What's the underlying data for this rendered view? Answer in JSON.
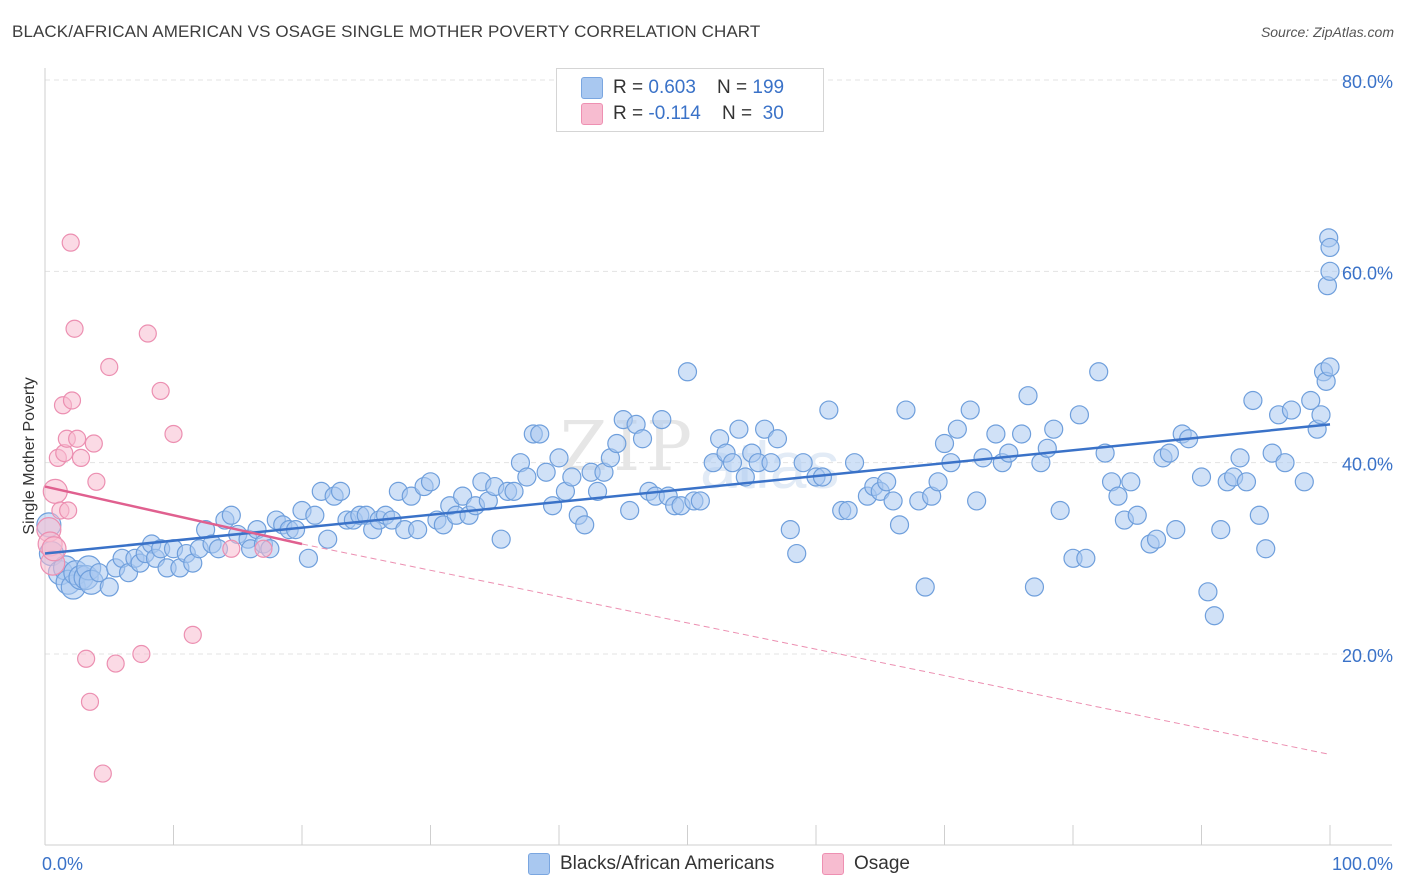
{
  "title": "BLACK/AFRICAN AMERICAN VS OSAGE SINGLE MOTHER POVERTY CORRELATION CHART",
  "source": "Source: ZipAtlas.com",
  "watermark": {
    "part1": "ZIP",
    "part2": "atlas"
  },
  "legend": {
    "rows": [
      {
        "r_label": "R = ",
        "r_value": "0.603",
        "n_label": "N = ",
        "n_value": "199",
        "color": "#a9c8f0"
      },
      {
        "r_label": "R = ",
        "r_value": "-0.114",
        "n_label": "N = ",
        "n_value": " 30",
        "color": "#f7bcd0"
      }
    ]
  },
  "bottom_legend": {
    "blue_label": "Blacks/African Americans",
    "pink_label": "Osage"
  },
  "chart_data": {
    "type": "scatter",
    "title": "BLACK/AFRICAN AMERICAN VS OSAGE SINGLE MOTHER POVERTY CORRELATION CHART",
    "xlabel": "",
    "ylabel": "Single Mother Poverty",
    "xlim": [
      0,
      100
    ],
    "ylim": [
      0,
      85
    ],
    "x_tick_labels": [
      "0.0%",
      "100.0%"
    ],
    "y_ticks": [
      20,
      40,
      60,
      80
    ],
    "y_tick_labels": [
      "20.0%",
      "40.0%",
      "60.0%",
      "80.0%"
    ],
    "grid": true,
    "colors": {
      "blue": "#3a72c8",
      "blue_fill": "#a9c8f0",
      "pink": "#e0608f",
      "pink_fill": "#f7bcd0"
    },
    "series": [
      {
        "name": "Blacks/African Americans",
        "R": 0.603,
        "N": 199,
        "trend": {
          "x": [
            0,
            100
          ],
          "y": [
            30.5,
            44
          ]
        },
        "points": [
          [
            0.3,
            33.5
          ],
          [
            0.5,
            30.5
          ],
          [
            1.2,
            28.5
          ],
          [
            1.6,
            29
          ],
          [
            1.8,
            27.5
          ],
          [
            2.2,
            27
          ],
          [
            2.4,
            28.5
          ],
          [
            2.8,
            28
          ],
          [
            3.2,
            28
          ],
          [
            3.4,
            29
          ],
          [
            3.6,
            27.5
          ],
          [
            4.2,
            28.5
          ],
          [
            5,
            27
          ],
          [
            5.5,
            29
          ],
          [
            6,
            30
          ],
          [
            6.5,
            28.5
          ],
          [
            7,
            30
          ],
          [
            7.4,
            29.5
          ],
          [
            7.8,
            30.5
          ],
          [
            8.3,
            31.5
          ],
          [
            8.6,
            30
          ],
          [
            9,
            31
          ],
          [
            9.5,
            29
          ],
          [
            10,
            31
          ],
          [
            10.5,
            29
          ],
          [
            11,
            30.5
          ],
          [
            11.5,
            29.5
          ],
          [
            12,
            31
          ],
          [
            12.5,
            33
          ],
          [
            13,
            31.5
          ],
          [
            13.5,
            31
          ],
          [
            14,
            34
          ],
          [
            14.5,
            34.5
          ],
          [
            15,
            32.5
          ],
          [
            15.8,
            32
          ],
          [
            16,
            31
          ],
          [
            16.5,
            33
          ],
          [
            17,
            31.5
          ],
          [
            17.5,
            31
          ],
          [
            18,
            34
          ],
          [
            18.5,
            33.5
          ],
          [
            19,
            33
          ],
          [
            19.5,
            33
          ],
          [
            20,
            35
          ],
          [
            20.5,
            30
          ],
          [
            21,
            34.5
          ],
          [
            21.5,
            37
          ],
          [
            22,
            32
          ],
          [
            22.5,
            36.5
          ],
          [
            23,
            37
          ],
          [
            23.5,
            34
          ],
          [
            24,
            34
          ],
          [
            24.5,
            34.5
          ],
          [
            25,
            34.5
          ],
          [
            25.5,
            33
          ],
          [
            26,
            34
          ],
          [
            26.5,
            34.5
          ],
          [
            27,
            34
          ],
          [
            27.5,
            37
          ],
          [
            28,
            33
          ],
          [
            28.5,
            36.5
          ],
          [
            29,
            33
          ],
          [
            29.5,
            37.5
          ],
          [
            30,
            38
          ],
          [
            30.5,
            34
          ],
          [
            31,
            33.5
          ],
          [
            31.5,
            35.5
          ],
          [
            32,
            34.5
          ],
          [
            32.5,
            36.5
          ],
          [
            33,
            34.5
          ],
          [
            33.5,
            35.5
          ],
          [
            34,
            38
          ],
          [
            34.5,
            36
          ],
          [
            35,
            37.5
          ],
          [
            35.5,
            32
          ],
          [
            36,
            37
          ],
          [
            36.5,
            37
          ],
          [
            37,
            40
          ],
          [
            37.5,
            38.5
          ],
          [
            38,
            43
          ],
          [
            38.5,
            43
          ],
          [
            39,
            39
          ],
          [
            39.5,
            35.5
          ],
          [
            40,
            40.5
          ],
          [
            40.5,
            37
          ],
          [
            41,
            38.5
          ],
          [
            41.5,
            34.5
          ],
          [
            42,
            33.5
          ],
          [
            42.5,
            39
          ],
          [
            43,
            37
          ],
          [
            43.5,
            39
          ],
          [
            44,
            40.5
          ],
          [
            44.5,
            42
          ],
          [
            45,
            44.5
          ],
          [
            45.5,
            35
          ],
          [
            46,
            44
          ],
          [
            46.5,
            42.5
          ],
          [
            47,
            37
          ],
          [
            47.5,
            36.5
          ],
          [
            48,
            44.5
          ],
          [
            48.5,
            36.5
          ],
          [
            49,
            35.5
          ],
          [
            49.5,
            35.5
          ],
          [
            50,
            49.5
          ],
          [
            50.5,
            36
          ],
          [
            51,
            36
          ],
          [
            52,
            40
          ],
          [
            52.5,
            42.5
          ],
          [
            53,
            41
          ],
          [
            53.5,
            40
          ],
          [
            54,
            43.5
          ],
          [
            54.5,
            38.5
          ],
          [
            55,
            41
          ],
          [
            55.5,
            40
          ],
          [
            56,
            43.5
          ],
          [
            56.5,
            40
          ],
          [
            57,
            42.5
          ],
          [
            58,
            33
          ],
          [
            58.5,
            30.5
          ],
          [
            59,
            40
          ],
          [
            60,
            38.5
          ],
          [
            60.5,
            38.5
          ],
          [
            61,
            45.5
          ],
          [
            62,
            35
          ],
          [
            62.5,
            35
          ],
          [
            63,
            40
          ],
          [
            64,
            36.5
          ],
          [
            64.5,
            37.5
          ],
          [
            65,
            37
          ],
          [
            65.5,
            38
          ],
          [
            66,
            36
          ],
          [
            66.5,
            33.5
          ],
          [
            67,
            45.5
          ],
          [
            68,
            36
          ],
          [
            68.5,
            27
          ],
          [
            69,
            36.5
          ],
          [
            69.5,
            38
          ],
          [
            70,
            42
          ],
          [
            70.5,
            40
          ],
          [
            71,
            43.5
          ],
          [
            72,
            45.5
          ],
          [
            72.5,
            36
          ],
          [
            73,
            40.5
          ],
          [
            74,
            43
          ],
          [
            74.5,
            40
          ],
          [
            75,
            41
          ],
          [
            76,
            43
          ],
          [
            76.5,
            47
          ],
          [
            77,
            27
          ],
          [
            77.5,
            40
          ],
          [
            78,
            41.5
          ],
          [
            78.5,
            43.5
          ],
          [
            79,
            35
          ],
          [
            80,
            30
          ],
          [
            80.5,
            45
          ],
          [
            81,
            30
          ],
          [
            82,
            49.5
          ],
          [
            82.5,
            41
          ],
          [
            83,
            38
          ],
          [
            83.5,
            36.5
          ],
          [
            84,
            34
          ],
          [
            84.5,
            38
          ],
          [
            85,
            34.5
          ],
          [
            86,
            31.5
          ],
          [
            86.5,
            32
          ],
          [
            87,
            40.5
          ],
          [
            87.5,
            41
          ],
          [
            88,
            33
          ],
          [
            88.5,
            43
          ],
          [
            89,
            42.5
          ],
          [
            90,
            38.5
          ],
          [
            90.5,
            26.5
          ],
          [
            91,
            24
          ],
          [
            91.5,
            33
          ],
          [
            92,
            38
          ],
          [
            92.5,
            38.5
          ],
          [
            93,
            40.5
          ],
          [
            93.5,
            38
          ],
          [
            94,
            46.5
          ],
          [
            94.5,
            34.5
          ],
          [
            95,
            31
          ],
          [
            95.5,
            41
          ],
          [
            96,
            45
          ],
          [
            96.5,
            40
          ],
          [
            97,
            45.5
          ],
          [
            98,
            38
          ],
          [
            98.5,
            46.5
          ],
          [
            99,
            43.5
          ],
          [
            99.3,
            45
          ],
          [
            99.5,
            49.5
          ],
          [
            99.7,
            48.5
          ],
          [
            99.8,
            58.5
          ],
          [
            99.9,
            63.5
          ],
          [
            100,
            60
          ],
          [
            100,
            50
          ],
          [
            100,
            62.5
          ]
        ]
      },
      {
        "name": "Osage",
        "R": -0.114,
        "N": 30,
        "trend": {
          "x": [
            0,
            20
          ],
          "y": [
            37.5,
            31.5
          ]
        },
        "trend_extended": {
          "x": [
            20,
            100
          ],
          "y": [
            31.5,
            9.5
          ]
        },
        "points": [
          [
            0.3,
            33
          ],
          [
            0.4,
            31.5
          ],
          [
            0.6,
            29.5
          ],
          [
            0.7,
            31
          ],
          [
            0.8,
            37
          ],
          [
            1,
            40.5
          ],
          [
            1.2,
            35
          ],
          [
            1.4,
            46
          ],
          [
            1.5,
            41
          ],
          [
            1.7,
            42.5
          ],
          [
            1.8,
            35
          ],
          [
            2,
            63
          ],
          [
            2.1,
            46.5
          ],
          [
            2.3,
            54
          ],
          [
            2.5,
            42.5
          ],
          [
            2.8,
            40.5
          ],
          [
            3.2,
            19.5
          ],
          [
            3.5,
            15
          ],
          [
            3.8,
            42
          ],
          [
            4,
            38
          ],
          [
            4.5,
            7.5
          ],
          [
            5,
            50
          ],
          [
            5.5,
            19
          ],
          [
            7.5,
            20
          ],
          [
            8,
            53.5
          ],
          [
            9,
            47.5
          ],
          [
            10,
            43
          ],
          [
            11.5,
            22
          ],
          [
            14.5,
            31
          ],
          [
            17,
            31
          ]
        ]
      }
    ]
  }
}
